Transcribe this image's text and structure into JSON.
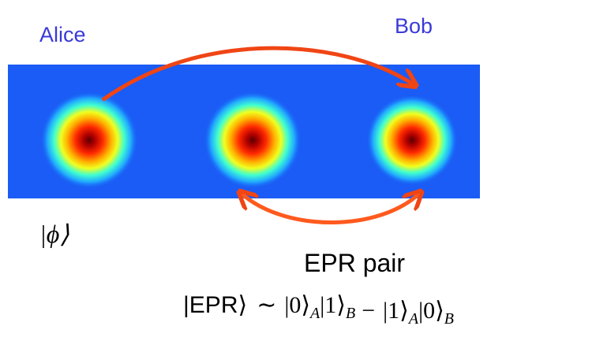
{
  "labels": {
    "sender": "Alice",
    "receiver": "Bob",
    "state": "|ϕ⟩",
    "pair": "EPR pair"
  },
  "formula": {
    "lhs": "|EPR⟩",
    "relation": "∼",
    "terms": [
      {
        "kets": [
          {
            "ket": "|0⟩",
            "sub": "A"
          },
          {
            "ket": "|1⟩",
            "sub": "B"
          }
        ]
      },
      {
        "kets": [
          {
            "ket": "|1⟩",
            "sub": "A"
          },
          {
            "ket": "|0⟩",
            "sub": "B"
          }
        ]
      }
    ],
    "operator": "−"
  }
}
